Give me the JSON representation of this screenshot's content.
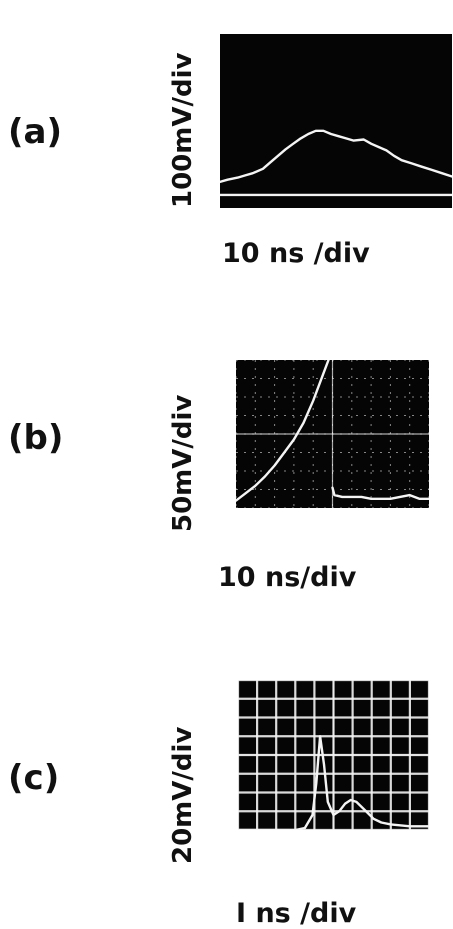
{
  "chart_data": [
    {
      "type": "line",
      "panel": "(a)",
      "ylabel": "100mV/div",
      "xlabel": "10 ns /div",
      "series": [
        {
          "x": [
            0,
            0.3,
            0.7,
            1.0,
            1.3,
            1.7,
            2.0,
            2.3,
            2.6,
            2.9,
            3.2,
            3.5,
            3.8,
            4.1,
            4.4,
            4.7,
            5.0,
            5.3,
            5.7,
            6.0,
            6.3,
            6.6,
            6.9,
            7.2,
            7.6,
            8.0,
            8.4,
            8.8,
            9.2
          ],
          "y": [
            -2.8,
            -2.7,
            -2.6,
            -2.5,
            -2.4,
            -2.2,
            -1.9,
            -1.6,
            -1.3,
            -1.05,
            -0.8,
            -0.6,
            -0.45,
            -0.45,
            -0.6,
            -0.7,
            -0.8,
            -0.9,
            -0.85,
            -1.05,
            -1.2,
            -1.35,
            -1.6,
            -1.8,
            -1.95,
            -2.1,
            -2.25,
            -2.4,
            -2.55
          ]
        },
        {
          "x": [
            0,
            1,
            2,
            3,
            4,
            5,
            6,
            7,
            8,
            9.2
          ],
          "y": [
            -3.4,
            -3.4,
            -3.4,
            -3.4,
            -3.4,
            -3.4,
            -3.4,
            -3.4,
            -3.4,
            -3.4
          ]
        }
      ],
      "xlim": [
        0,
        9.2
      ],
      "ylim": [
        -4,
        4
      ],
      "grid": false
    },
    {
      "type": "line",
      "panel": "(b)",
      "ylabel": "50mV/div",
      "xlabel": "10 ns/div",
      "series": [
        {
          "x": [
            0,
            0.5,
            1.0,
            1.5,
            2.0,
            2.5,
            3.0,
            3.5,
            4.0,
            4.5,
            4.9
          ],
          "y": [
            -3.6,
            -3.2,
            -2.8,
            -2.3,
            -1.7,
            -1.0,
            -0.3,
            0.6,
            1.8,
            3.2,
            4.3
          ]
        },
        {
          "x": [
            5.0,
            5.1,
            5.5,
            6.0,
            6.5,
            7.0,
            7.5,
            8.0,
            8.5,
            9.0,
            9.5,
            10.0
          ],
          "y": [
            -2.9,
            -3.3,
            -3.4,
            -3.4,
            -3.4,
            -3.5,
            -3.5,
            -3.5,
            -3.4,
            -3.3,
            -3.5,
            -3.5
          ]
        }
      ],
      "xlim": [
        0,
        10
      ],
      "ylim": [
        -4,
        4
      ],
      "grid": true
    },
    {
      "type": "line",
      "panel": "(c)",
      "ylabel": "20mV/div",
      "xlabel": "I ns /div",
      "series": [
        {
          "x": [
            0,
            1,
            2,
            3,
            3.5,
            3.9,
            4.1,
            4.3,
            4.5,
            4.7,
            5.0,
            5.3,
            5.6,
            5.9,
            6.2,
            6.5,
            6.8,
            7.1,
            7.5,
            8,
            9,
            10
          ],
          "y": [
            -4,
            -4,
            -4,
            -4,
            -3.9,
            -3.2,
            -1.5,
            1.0,
            -0.5,
            -2.5,
            -3.2,
            -3.0,
            -2.6,
            -2.4,
            -2.5,
            -2.8,
            -3.1,
            -3.4,
            -3.6,
            -3.7,
            -3.8,
            -3.8
          ]
        }
      ],
      "xlim": [
        0,
        10
      ],
      "ylim": [
        -4,
        4
      ],
      "grid": true
    }
  ]
}
